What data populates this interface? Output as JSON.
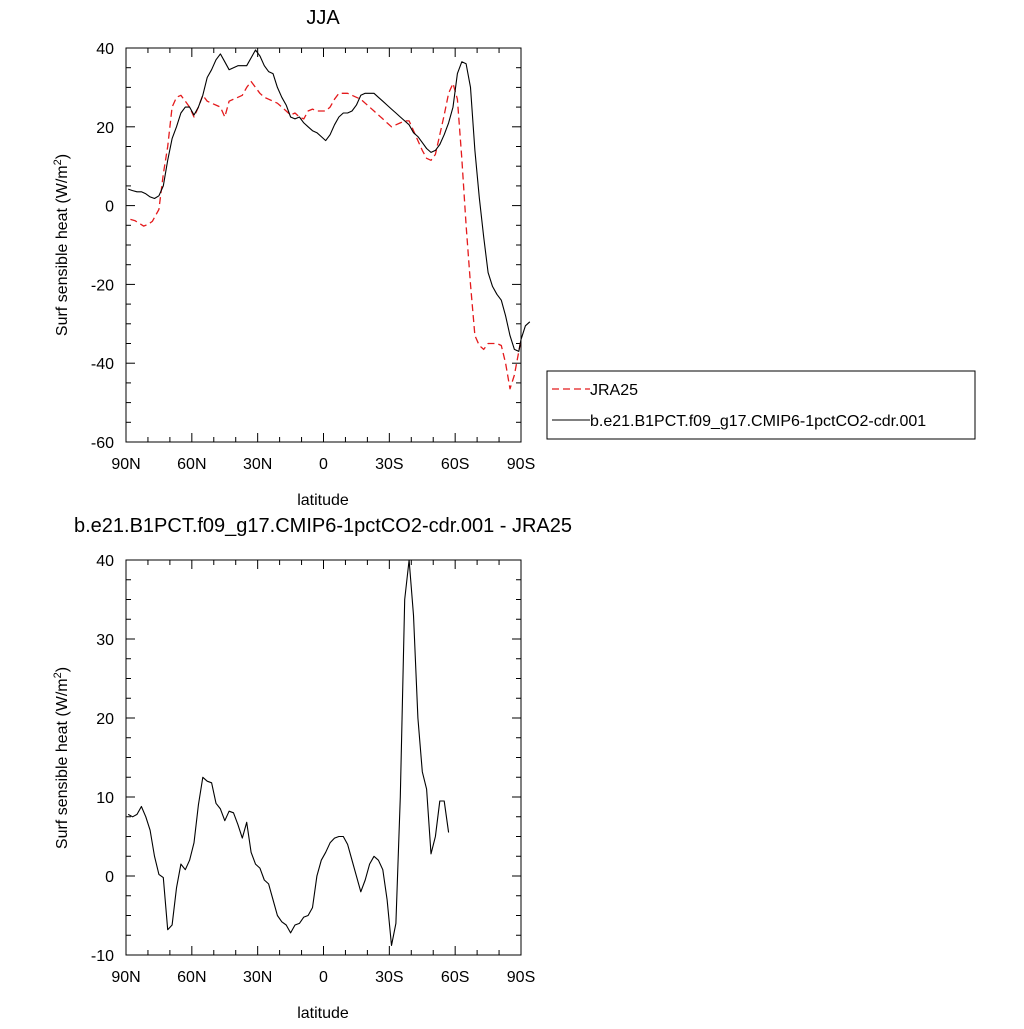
{
  "chart_data": [
    {
      "type": "line",
      "title": "JJA",
      "xlabel": "latitude",
      "ylabel": "Surf sensible heat (W/m",
      "ylabel_sup": "2",
      "ylabel_close": ")",
      "xlim": [
        90,
        -90
      ],
      "ylim": [
        -60,
        40
      ],
      "x_ticks": [
        90,
        60,
        30,
        0,
        -30,
        -60,
        -90
      ],
      "x_tick_labels": [
        "90N",
        "60N",
        "30N",
        "0",
        "30S",
        "60S",
        "90S"
      ],
      "y_ticks": [
        -60,
        -40,
        -20,
        0,
        20,
        40
      ],
      "y_tick_labels": [
        "-60",
        "-40",
        "-20",
        "0",
        "20",
        "40"
      ],
      "legend": "right, outside",
      "series": [
        {
          "name": "JRA25",
          "color": "#e41a1c",
          "style": "dashed",
          "points": [
            [
              88,
              -3.5
            ],
            [
              86,
              -3.8
            ],
            [
              84,
              -4.5
            ],
            [
              82,
              -5.2
            ],
            [
              80,
              -4.8
            ],
            [
              78,
              -4.0
            ],
            [
              75,
              -1.0
            ],
            [
              73,
              8.0
            ],
            [
              71,
              15.0
            ],
            [
              69,
              25.0
            ],
            [
              67,
              27.5
            ],
            [
              65,
              28.0
            ],
            [
              63,
              26.5
            ],
            [
              61,
              25.0
            ],
            [
              59,
              22.5
            ],
            [
              57,
              25.0
            ],
            [
              55,
              28.0
            ],
            [
              53,
              26.5
            ],
            [
              51,
              26.0
            ],
            [
              49,
              25.5
            ],
            [
              47,
              25.0
            ],
            [
              45,
              22.5
            ],
            [
              43,
              26.5
            ],
            [
              41,
              27.0
            ],
            [
              39,
              27.5
            ],
            [
              37,
              28.0
            ],
            [
              35,
              30.0
            ],
            [
              33,
              31.5
            ],
            [
              31,
              30.0
            ],
            [
              29,
              28.5
            ],
            [
              27,
              27.5
            ],
            [
              25,
              27.0
            ],
            [
              23,
              26.5
            ],
            [
              21,
              26.0
            ],
            [
              19,
              25.0
            ],
            [
              17,
              24.0
            ],
            [
              15,
              23.0
            ],
            [
              13,
              23.5
            ],
            [
              11,
              22.5
            ],
            [
              9,
              22.0
            ],
            [
              7,
              24.0
            ],
            [
              5,
              24.5
            ],
            [
              3,
              24.0
            ],
            [
              1,
              24.0
            ],
            [
              -1,
              24.0
            ],
            [
              -3,
              25.0
            ],
            [
              -5,
              27.0
            ],
            [
              -7,
              28.5
            ],
            [
              -9,
              28.5
            ],
            [
              -11,
              28.5
            ],
            [
              -13,
              28.0
            ],
            [
              -15,
              27.5
            ],
            [
              -17,
              27.0
            ],
            [
              -19,
              26.0
            ],
            [
              -21,
              25.0
            ],
            [
              -23,
              24.0
            ],
            [
              -25,
              23.0
            ],
            [
              -27,
              22.0
            ],
            [
              -29,
              21.0
            ],
            [
              -31,
              20.0
            ],
            [
              -33,
              20.5
            ],
            [
              -35,
              21.0
            ],
            [
              -37,
              21.5
            ],
            [
              -39,
              21.5
            ],
            [
              -41,
              19.0
            ],
            [
              -43,
              16.5
            ],
            [
              -45,
              14.0
            ],
            [
              -47,
              12.0
            ],
            [
              -49,
              11.5
            ],
            [
              -51,
              13.0
            ],
            [
              -53,
              18.0
            ],
            [
              -55,
              23.0
            ],
            [
              -57,
              28.5
            ],
            [
              -59,
              31.0
            ],
            [
              -61,
              27.0
            ],
            [
              -63,
              12.0
            ],
            [
              -65,
              -5.0
            ],
            [
              -67,
              -20.0
            ],
            [
              -69,
              -33.0
            ],
            [
              -71,
              -35.5
            ],
            [
              -73,
              -36.5
            ],
            [
              -75,
              -35.0
            ],
            [
              -77,
              -35.0
            ],
            [
              -79,
              -35.0
            ],
            [
              -81,
              -35.5
            ],
            [
              -83,
              -40.0
            ],
            [
              -85,
              -46.5
            ],
            [
              -87,
              -43.0
            ],
            [
              -89,
              -37.0
            ],
            [
              -90,
              -34.0
            ]
          ]
        },
        {
          "name": "b.e21.B1PCT.f09_g17.CMIP6-1pctCO2-cdr.001",
          "color": "#000000",
          "style": "solid",
          "points": [
            [
              89,
              4.2
            ],
            [
              87,
              3.8
            ],
            [
              85,
              3.5
            ],
            [
              83,
              3.5
            ],
            [
              81,
              3.0
            ],
            [
              79,
              2.2
            ],
            [
              77,
              1.8
            ],
            [
              75,
              2.5
            ],
            [
              73,
              5.0
            ],
            [
              71,
              11.5
            ],
            [
              69,
              17.0
            ],
            [
              67,
              20.0
            ],
            [
              65,
              23.5
            ],
            [
              63,
              25.0
            ],
            [
              61,
              25.0
            ],
            [
              59,
              23.0
            ],
            [
              57,
              25.0
            ],
            [
              55,
              28.0
            ],
            [
              53,
              32.5
            ],
            [
              51,
              34.5
            ],
            [
              49,
              37.0
            ],
            [
              47,
              38.5
            ],
            [
              45,
              36.5
            ],
            [
              43,
              34.5
            ],
            [
              41,
              35.0
            ],
            [
              39,
              35.5
            ],
            [
              37,
              35.5
            ],
            [
              35,
              35.5
            ],
            [
              33,
              37.5
            ],
            [
              31,
              39.5
            ],
            [
              29,
              38.0
            ],
            [
              27,
              35.5
            ],
            [
              25,
              34.0
            ],
            [
              23,
              33.5
            ],
            [
              21,
              30.0
            ],
            [
              19,
              27.5
            ],
            [
              17,
              25.5
            ],
            [
              15,
              22.5
            ],
            [
              13,
              22.0
            ],
            [
              11,
              22.5
            ],
            [
              9,
              21.0
            ],
            [
              7,
              20.0
            ],
            [
              5,
              19.0
            ],
            [
              3,
              18.5
            ],
            [
              1,
              17.5
            ],
            [
              -1,
              16.5
            ],
            [
              -3,
              18.0
            ],
            [
              -5,
              20.5
            ],
            [
              -7,
              22.5
            ],
            [
              -9,
              23.5
            ],
            [
              -11,
              23.5
            ],
            [
              -13,
              24.0
            ],
            [
              -15,
              25.5
            ],
            [
              -17,
              28.0
            ],
            [
              -19,
              28.5
            ],
            [
              -21,
              28.5
            ],
            [
              -23,
              28.5
            ],
            [
              -25,
              27.5
            ],
            [
              -27,
              26.5
            ],
            [
              -29,
              25.5
            ],
            [
              -31,
              24.5
            ],
            [
              -33,
              23.5
            ],
            [
              -35,
              22.5
            ],
            [
              -37,
              21.5
            ],
            [
              -39,
              20.5
            ],
            [
              -41,
              18.5
            ],
            [
              -43,
              17.5
            ],
            [
              -45,
              16.0
            ],
            [
              -47,
              14.5
            ],
            [
              -49,
              13.5
            ],
            [
              -51,
              14.0
            ],
            [
              -53,
              15.5
            ],
            [
              -55,
              18.0
            ],
            [
              -57,
              21.0
            ],
            [
              -59,
              25.0
            ],
            [
              -61,
              33.5
            ],
            [
              -63,
              36.5
            ],
            [
              -65,
              36.0
            ],
            [
              -67,
              30.0
            ],
            [
              -69,
              14.0
            ],
            [
              -71,
              2.0
            ],
            [
              -73,
              -8.0
            ],
            [
              -75,
              -17.0
            ],
            [
              -77,
              -20.5
            ],
            [
              -79,
              -22.5
            ],
            [
              -81,
              -24.0
            ],
            [
              -83,
              -28.0
            ],
            [
              -85,
              -33.0
            ],
            [
              -87,
              -36.5
            ],
            [
              -89,
              -37.0
            ],
            [
              -90,
              -34.0
            ],
            [
              -92,
              -30.5
            ],
            [
              -94,
              -29.5
            ]
          ]
        }
      ]
    },
    {
      "type": "line",
      "title": "b.e21.B1PCT.f09_g17.CMIP6-1pctCO2-cdr.001 - JRA25",
      "xlabel": "latitude",
      "ylabel": "Surf sensible heat (W/m",
      "ylabel_sup": "2",
      "ylabel_close": ")",
      "xlim": [
        90,
        -90
      ],
      "ylim": [
        -10,
        40
      ],
      "x_ticks": [
        90,
        60,
        30,
        0,
        -30,
        -60,
        -90
      ],
      "x_tick_labels": [
        "90N",
        "60N",
        "30N",
        "0",
        "30S",
        "60S",
        "90S"
      ],
      "y_ticks": [
        -10,
        0,
        10,
        20,
        30,
        40
      ],
      "y_tick_labels": [
        "-10",
        "0",
        "10",
        "20",
        "30",
        "40"
      ],
      "series": [
        {
          "color": "#000000",
          "style": "solid",
          "points": [
            [
              89,
              7.8
            ],
            [
              87,
              7.5
            ],
            [
              85,
              7.8
            ],
            [
              83,
              8.8
            ],
            [
              81,
              7.5
            ],
            [
              79,
              5.8
            ],
            [
              77,
              2.5
            ],
            [
              75,
              0.2
            ],
            [
              73,
              -0.2
            ],
            [
              71,
              -6.8
            ],
            [
              69,
              -6.2
            ],
            [
              67,
              -1.5
            ],
            [
              65,
              1.5
            ],
            [
              63,
              0.8
            ],
            [
              61,
              2.0
            ],
            [
              59,
              4.2
            ],
            [
              57,
              9.0
            ],
            [
              55,
              12.5
            ],
            [
              53,
              12.0
            ],
            [
              51,
              11.8
            ],
            [
              49,
              9.2
            ],
            [
              47,
              8.5
            ],
            [
              45,
              7.0
            ],
            [
              43,
              8.2
            ],
            [
              41,
              8.0
            ],
            [
              39,
              6.5
            ],
            [
              37,
              4.8
            ],
            [
              35,
              6.8
            ],
            [
              33,
              3.0
            ],
            [
              31,
              1.5
            ],
            [
              29,
              1.0
            ],
            [
              27,
              -0.5
            ],
            [
              25,
              -1.0
            ],
            [
              23,
              -3.0
            ],
            [
              21,
              -5.0
            ],
            [
              19,
              -5.8
            ],
            [
              17,
              -6.2
            ],
            [
              15,
              -7.2
            ],
            [
              13,
              -6.2
            ],
            [
              11,
              -6.0
            ],
            [
              9,
              -5.2
            ],
            [
              7,
              -5.0
            ],
            [
              5,
              -4.0
            ],
            [
              3,
              0.0
            ],
            [
              1,
              2.0
            ],
            [
              -1,
              3.0
            ],
            [
              -3,
              4.2
            ],
            [
              -5,
              4.8
            ],
            [
              -7,
              5.0
            ],
            [
              -9,
              5.0
            ],
            [
              -11,
              4.0
            ],
            [
              -13,
              2.0
            ],
            [
              -15,
              0.0
            ],
            [
              -17,
              -2.0
            ],
            [
              -19,
              -0.5
            ],
            [
              -21,
              1.5
            ],
            [
              -23,
              2.5
            ],
            [
              -25,
              2.0
            ],
            [
              -27,
              0.8
            ],
            [
              -29,
              -3.0
            ],
            [
              -31,
              -8.8
            ],
            [
              -33,
              -6.0
            ],
            [
              -35,
              10.0
            ],
            [
              -37,
              35.0
            ],
            [
              -39,
              40.0
            ],
            [
              -41,
              33.0
            ],
            [
              -43,
              20.0
            ],
            [
              -45,
              13.2
            ],
            [
              -47,
              11.0
            ],
            [
              -49,
              2.8
            ],
            [
              -51,
              5.0
            ],
            [
              -53,
              9.5
            ],
            [
              -55,
              9.5
            ],
            [
              -57,
              5.5
            ]
          ]
        }
      ]
    }
  ]
}
